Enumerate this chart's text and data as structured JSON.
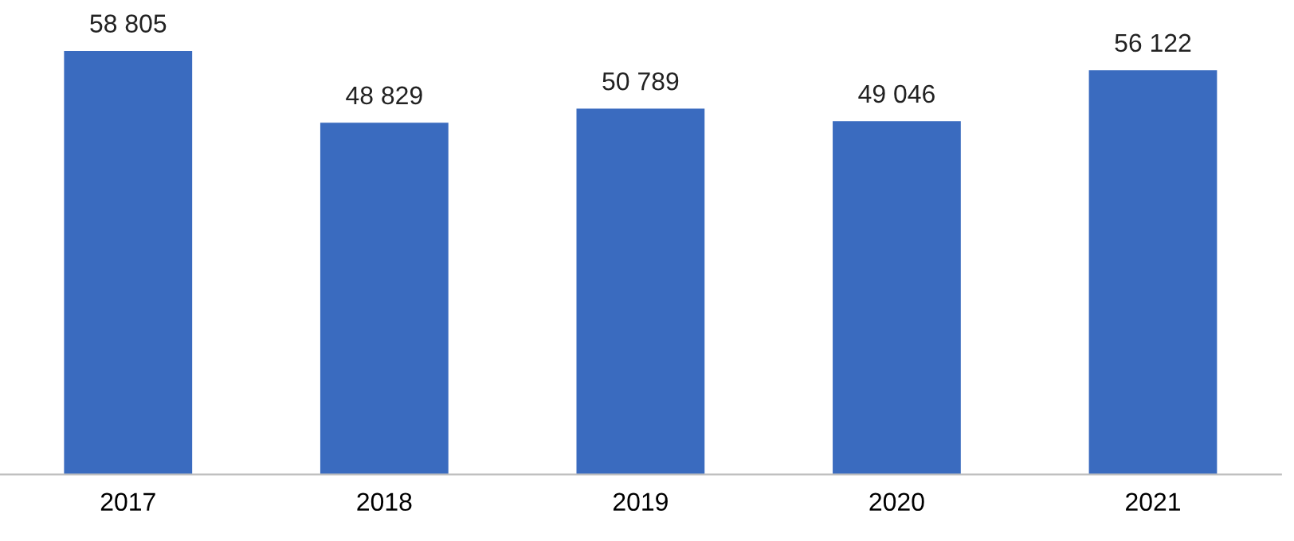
{
  "chart_data": {
    "type": "bar",
    "categories": [
      "2017",
      "2018",
      "2019",
      "2020",
      "2021"
    ],
    "values": [
      58805,
      48829,
      50789,
      49046,
      56122
    ],
    "value_labels": [
      "58 805",
      "48 829",
      "50 789",
      "49 046",
      "56 122"
    ],
    "color": "#3a6bbf",
    "grid": false,
    "legend": false
  }
}
